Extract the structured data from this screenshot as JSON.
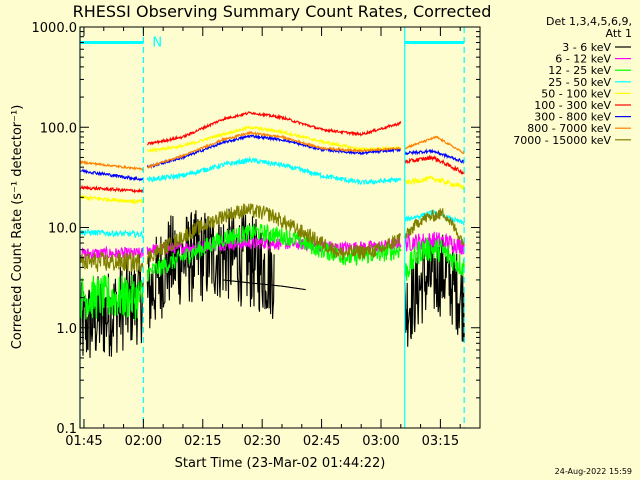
{
  "chart_data": {
    "type": "line",
    "title": "RHESSI Observing Summary Count Rates, Corrected",
    "xlabel": "Start Time (23-Mar-02 01:44:22)",
    "ylabel": "Corrected Count Rate (s⁻¹ detector⁻¹)",
    "y_scale": "log",
    "ylim": [
      0.1,
      1000
    ],
    "y_ticks": [
      "0.1",
      "1.0",
      "10.0",
      "100.0",
      "1000.0"
    ],
    "x_ticks": [
      "01:45",
      "02:00",
      "02:15",
      "02:30",
      "02:45",
      "03:00",
      "03:15"
    ],
    "legend": {
      "header": [
        "Det 1,3,4,5,6,9,",
        "Att 1"
      ],
      "placement": "right"
    },
    "series": [
      {
        "name": "3 - 6 keV",
        "color": "#000000",
        "segments": [
          {
            "x": [
              "01:44",
              "01:53",
              "02:00"
            ],
            "y": [
              1.0,
              1.5,
              2.0
            ],
            "noise": 0.9
          },
          {
            "x": [
              "02:01",
              "02:06",
              "02:12",
              "02:20",
              "02:27",
              "02:33"
            ],
            "y": [
              2.0,
              4.5,
              5.0,
              5.5,
              4.5,
              3.5
            ],
            "noise": 0.95
          },
          {
            "x": [
              "02:20",
              "02:27",
              "02:35",
              "02:41"
            ],
            "y": [
              3.0,
              2.8,
              2.6,
              2.4
            ],
            "noise": 0.0
          },
          {
            "x": [
              "03:06",
              "03:11",
              "03:16",
              "03:21"
            ],
            "y": [
              1.5,
              3.0,
              3.5,
              1.8
            ],
            "noise": 0.85
          }
        ]
      },
      {
        "name": "6 - 12 keV",
        "color": "#ff00ff",
        "segments": [
          {
            "x": [
              "01:44",
              "02:00"
            ],
            "y": [
              5.5,
              5.5
            ],
            "noise": 0.12
          },
          {
            "x": [
              "02:01",
              "02:10",
              "02:20",
              "02:30",
              "02:40",
              "02:50",
              "03:00",
              "03:05"
            ],
            "y": [
              6.0,
              6.3,
              6.8,
              7.0,
              6.8,
              6.3,
              6.5,
              7.0
            ],
            "noise": 0.12
          },
          {
            "x": [
              "03:06",
              "03:14",
              "03:21"
            ],
            "y": [
              7.0,
              7.5,
              6.5
            ],
            "noise": 0.18
          }
        ]
      },
      {
        "name": "12 - 25 keV",
        "color": "#00ff00",
        "segments": [
          {
            "x": [
              "01:44",
              "02:00"
            ],
            "y": [
              2.0,
              2.0
            ],
            "noise": 0.45
          },
          {
            "x": [
              "02:01",
              "02:12",
              "02:21",
              "02:29",
              "02:37",
              "02:45",
              "02:52",
              "03:00",
              "03:05"
            ],
            "y": [
              3.5,
              5.5,
              8.0,
              9.0,
              8.0,
              6.0,
              5.0,
              5.5,
              6.0
            ],
            "noise": 0.18
          },
          {
            "x": [
              "03:06",
              "03:10",
              "03:15",
              "03:21"
            ],
            "y": [
              3.5,
              6.0,
              6.0,
              4.0
            ],
            "noise": 0.25
          }
        ]
      },
      {
        "name": "25 - 50 keV",
        "color": "#00ffff",
        "segments": [
          {
            "x": [
              "01:44",
              "02:00"
            ],
            "y": [
              9.0,
              8.5
            ],
            "noise": 0.06
          },
          {
            "x": [
              "02:01",
              "02:10",
              "02:20",
              "02:27",
              "02:35",
              "02:45",
              "02:55",
              "03:05"
            ],
            "y": [
              30.0,
              33.0,
              42.0,
              47.0,
              42.0,
              33.0,
              28.0,
              30.0
            ],
            "noise": 0.05
          },
          {
            "x": [
              "03:06",
              "03:13",
              "03:21"
            ],
            "y": [
              12.0,
              14.0,
              11.0
            ],
            "noise": 0.05
          }
        ]
      },
      {
        "name": "50 - 100 keV",
        "color": "#ffff00",
        "segments": [
          {
            "x": [
              "01:44",
              "02:00"
            ],
            "y": [
              20.0,
              18.0
            ],
            "noise": 0.04
          },
          {
            "x": [
              "02:01",
              "02:10",
              "02:20",
              "02:27",
              "02:35",
              "02:45",
              "02:55",
              "03:05"
            ],
            "y": [
              58.0,
              65.0,
              85.0,
              100.0,
              90.0,
              72.0,
              60.0,
              62.0
            ],
            "noise": 0.03
          },
          {
            "x": [
              "03:06",
              "03:13",
              "03:21"
            ],
            "y": [
              28.0,
              31.0,
              25.0
            ],
            "noise": 0.05
          }
        ]
      },
      {
        "name": "100 - 300 keV",
        "color": "#ff0000",
        "segments": [
          {
            "x": [
              "01:44",
              "02:00"
            ],
            "y": [
              25.0,
              23.0
            ],
            "noise": 0.03
          },
          {
            "x": [
              "02:01",
              "02:10",
              "02:20",
              "02:27",
              "02:35",
              "02:45",
              "02:55",
              "03:05"
            ],
            "y": [
              68.0,
              80.0,
              120.0,
              140.0,
              125.0,
              95.0,
              85.0,
              110.0
            ],
            "noise": 0.025
          },
          {
            "x": [
              "03:06",
              "03:13",
              "03:21"
            ],
            "y": [
              45.0,
              50.0,
              35.0
            ],
            "noise": 0.04
          }
        ]
      },
      {
        "name": "300 - 800 keV",
        "color": "#0000ff",
        "segments": [
          {
            "x": [
              "01:44",
              "02:00"
            ],
            "y": [
              37.0,
              30.0
            ],
            "noise": 0.03
          },
          {
            "x": [
              "02:01",
              "02:10",
              "02:20",
              "02:27",
              "02:35",
              "02:45",
              "02:55",
              "03:05"
            ],
            "y": [
              40.0,
              50.0,
              70.0,
              82.0,
              75.0,
              60.0,
              55.0,
              60.0
            ],
            "noise": 0.025
          },
          {
            "x": [
              "03:06",
              "03:13",
              "03:21"
            ],
            "y": [
              55.0,
              58.0,
              45.0
            ],
            "noise": 0.03
          }
        ]
      },
      {
        "name": "800 - 7000 keV",
        "color": "#ff8000",
        "segments": [
          {
            "x": [
              "01:44",
              "02:00"
            ],
            "y": [
              45.0,
              38.0
            ],
            "noise": 0.02
          },
          {
            "x": [
              "02:01",
              "02:10",
              "02:20",
              "02:27",
              "02:35",
              "02:45",
              "02:55",
              "03:05"
            ],
            "y": [
              40.0,
              52.0,
              75.0,
              88.0,
              80.0,
              62.0,
              58.0,
              62.0
            ],
            "noise": 0.02
          },
          {
            "x": [
              "03:06",
              "03:14",
              "03:21"
            ],
            "y": [
              62.0,
              80.0,
              55.0
            ],
            "noise": 0.02
          }
        ]
      },
      {
        "name": "7000 - 15000 keV",
        "color": "#808000",
        "segments": [
          {
            "x": [
              "01:44",
              "02:00"
            ],
            "y": [
              4.5,
              4.5
            ],
            "noise": 0.2
          },
          {
            "x": [
              "02:01",
              "02:12",
              "02:20",
              "02:26",
              "02:32",
              "02:40",
              "02:50",
              "03:00",
              "03:05"
            ],
            "y": [
              5.0,
              9.0,
              13.0,
              15.0,
              13.5,
              9.0,
              5.5,
              6.0,
              8.0
            ],
            "noise": 0.15
          },
          {
            "x": [
              "03:06",
              "03:10",
              "03:16",
              "03:21"
            ],
            "y": [
              8.0,
              12.0,
              14.0,
              7.0
            ],
            "noise": 0.12
          }
        ]
      }
    ],
    "attenuator_bars": [
      {
        "from": "01:44",
        "to": "02:00",
        "y": 700,
        "color": "#00ffff"
      },
      {
        "from": "03:06",
        "to": "03:21",
        "y": 700,
        "color": "#00ffff"
      }
    ],
    "night_lines": [
      {
        "at": "01:44",
        "style": "solid",
        "color": "#00ffff"
      },
      {
        "at": "02:00",
        "style": "dashed",
        "color": "#00ffff"
      },
      {
        "at": "03:06",
        "style": "solid",
        "color": "#00ffff"
      },
      {
        "at": "03:21",
        "style": "dashed",
        "color": "#00ffff"
      }
    ],
    "annotations": [
      {
        "text": "N",
        "x": "02:01",
        "y": 700,
        "color": "#00ffff"
      }
    ],
    "grid": false
  },
  "footer": {
    "timestamp": "24-Aug-2022 15:59"
  }
}
